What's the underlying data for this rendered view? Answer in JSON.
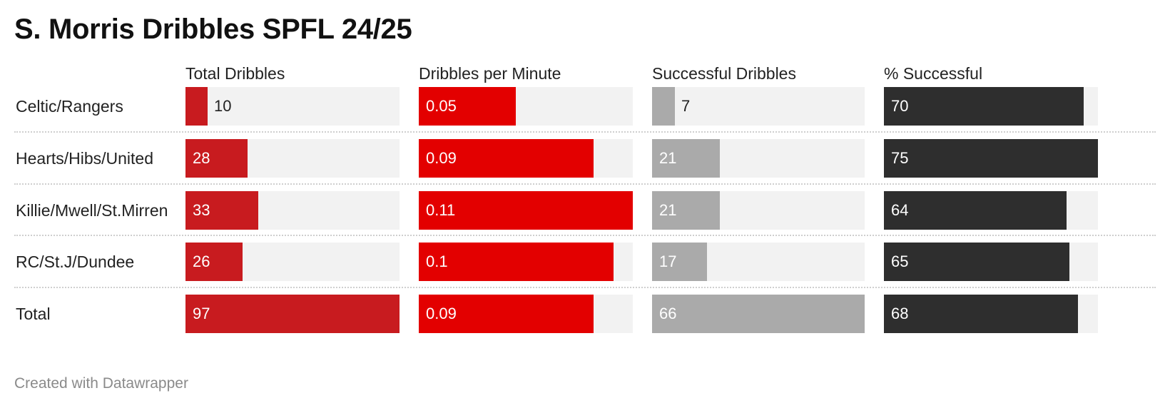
{
  "title": "S. Morris Dribbles SPFL 24/25",
  "footer": "Created with Datawrapper",
  "chart_data": {
    "type": "table",
    "columns": [
      {
        "name": "Total Dribbles",
        "color": "#c81b1f",
        "max": 97
      },
      {
        "name": "Dribbles per Minute",
        "color": "#e30000",
        "max": 0.11
      },
      {
        "name": "Successful Dribbles",
        "color": "#aaaaaa",
        "max": 66
      },
      {
        "name": "% Successful",
        "color": "#2e2e2e",
        "max": 75
      }
    ],
    "rows": [
      {
        "label": "Celtic/Rangers",
        "values": [
          10,
          0.05,
          7,
          70
        ]
      },
      {
        "label": "Hearts/Hibs/United",
        "values": [
          28,
          0.09,
          21,
          75
        ]
      },
      {
        "label": "Killie/Mwell/St.Mirren",
        "values": [
          33,
          0.11,
          21,
          64
        ]
      },
      {
        "label": "RC/St.J/Dundee",
        "values": [
          26,
          0.1,
          17,
          65
        ]
      },
      {
        "label": "Total",
        "values": [
          97,
          0.09,
          66,
          68
        ]
      }
    ]
  }
}
